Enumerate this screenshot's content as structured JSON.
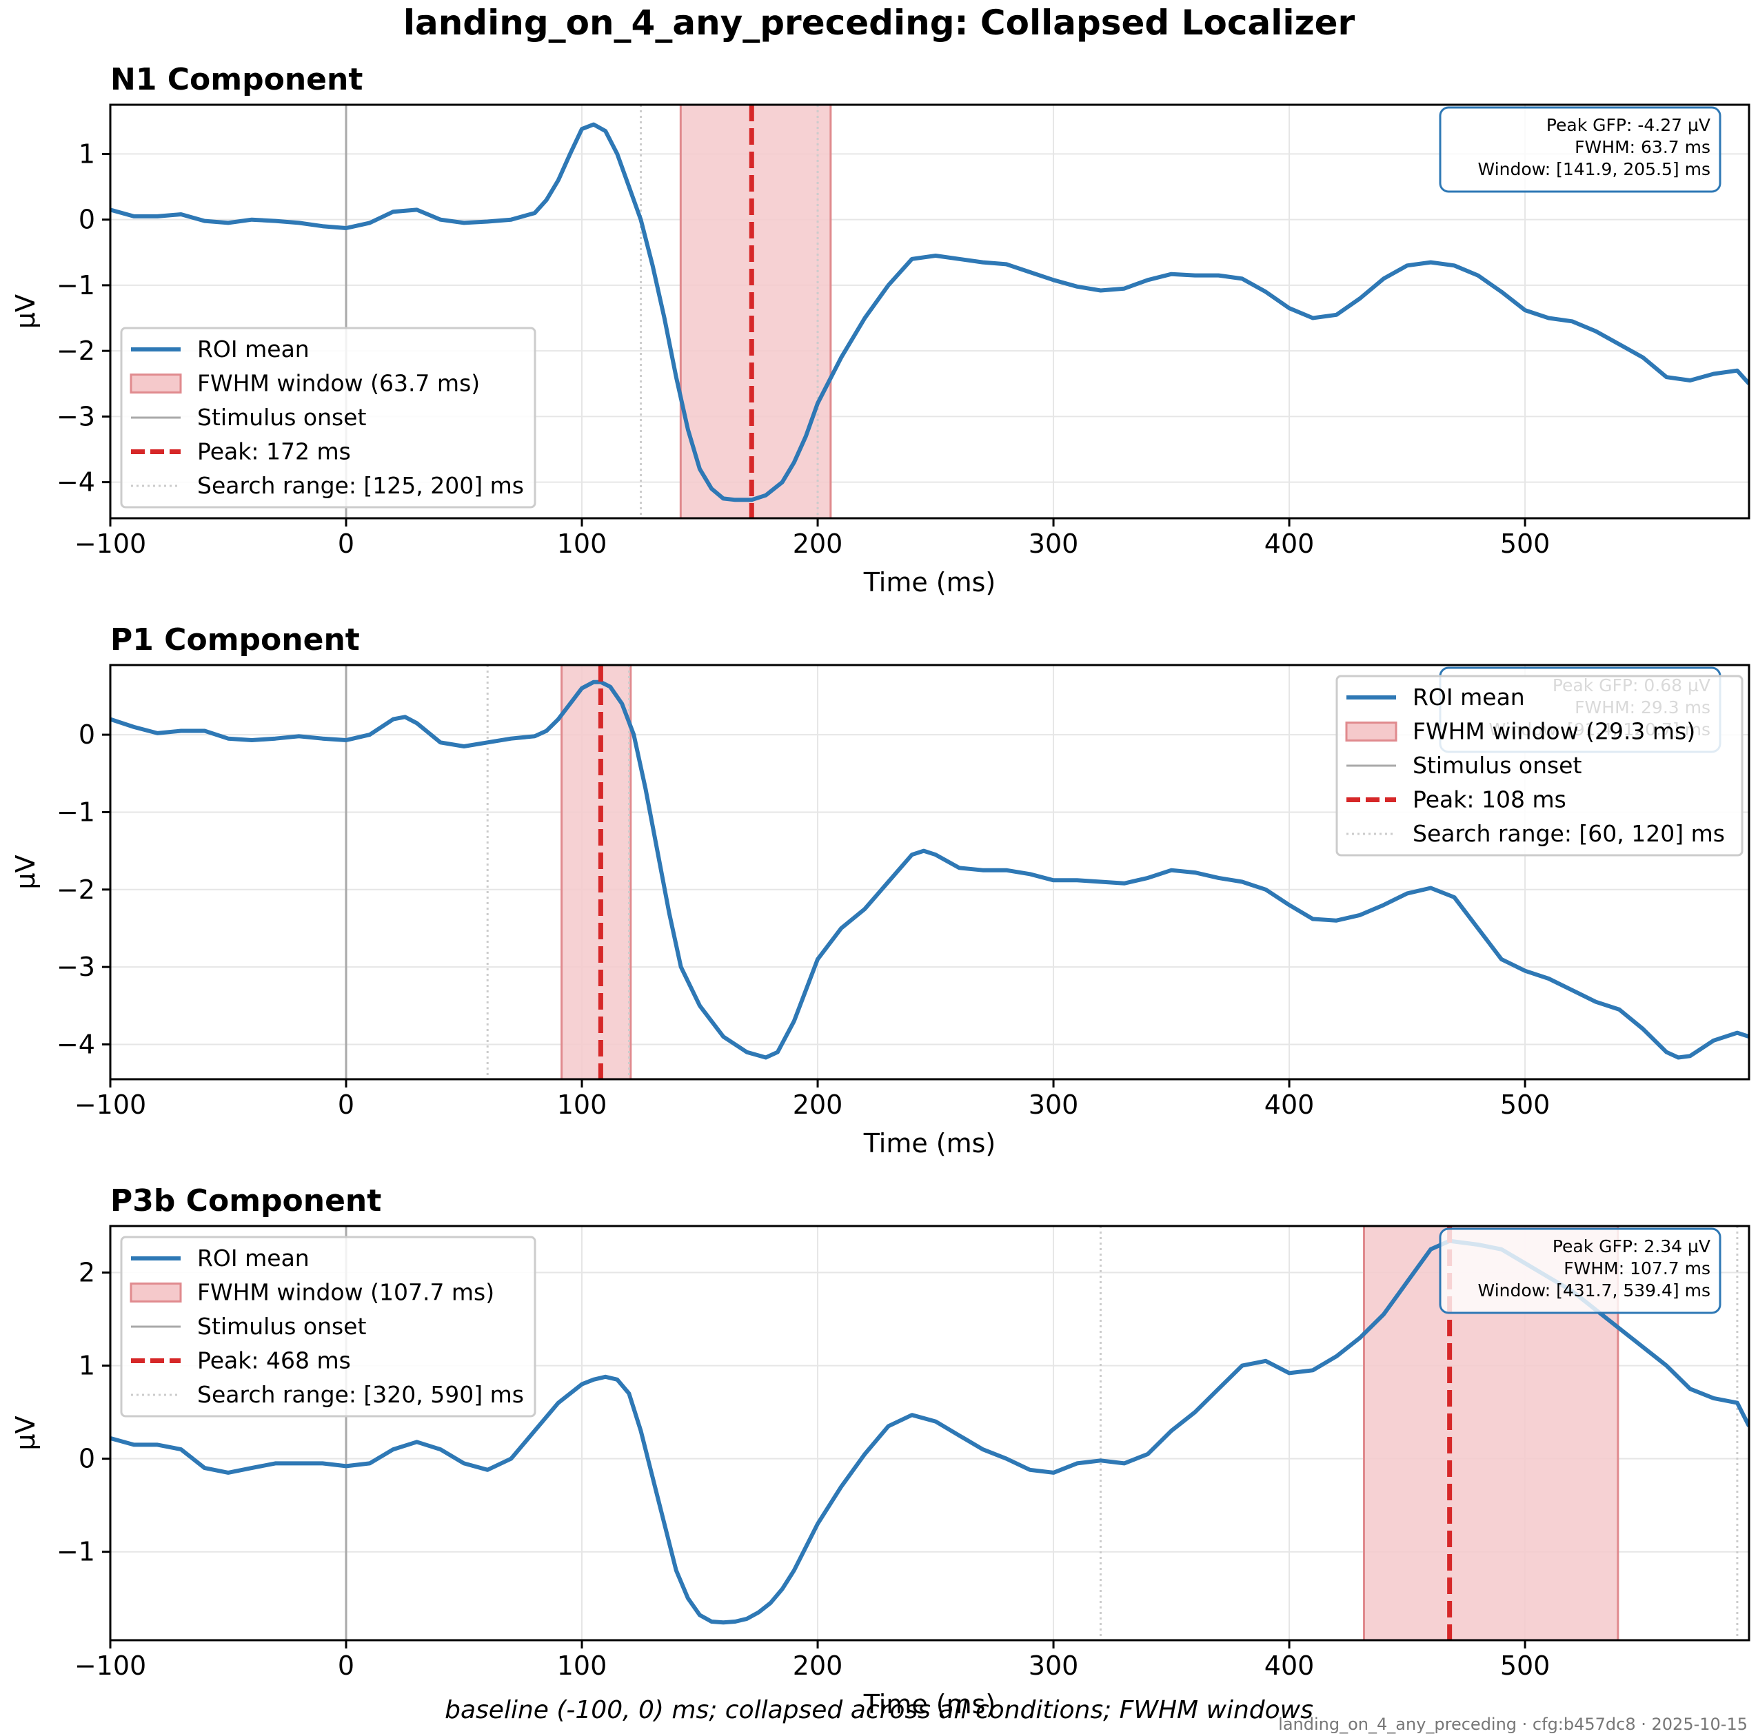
{
  "figure": {
    "title": "landing_on_4_any_preceding: Collapsed Localizer",
    "caption": "baseline (-100, 0) ms; collapsed across all conditions; FWHM windows",
    "footer": "landing_on_4_any_preceding · cfg:b457dc8 · 2025-10-15"
  },
  "colors": {
    "trace": "#2e78b5",
    "window_fill": "#f5c9cb",
    "window_edge": "#e08a8e",
    "peak": "#d62728",
    "onset": "#a9a9a9",
    "search": "#cccccc",
    "grid": "#e6e6e6"
  },
  "chart_data": [
    {
      "type": "line",
      "title": "N1 Component",
      "xlabel": "Time (ms)",
      "ylabel": "µV",
      "xlim": [
        -100,
        595
      ],
      "ylim": [
        -4.55,
        1.75
      ],
      "xticks": [
        -100,
        0,
        100,
        200,
        300,
        400,
        500
      ],
      "yticks": [
        -4,
        -3,
        -2,
        -1,
        0,
        1
      ],
      "grid": true,
      "legend_placement": "lower-left",
      "legend": [
        "ROI mean",
        "FWHM window (63.7 ms)",
        "Stimulus onset",
        "Peak: 172 ms",
        "Search range: [125, 200] ms"
      ],
      "annotation": [
        "Peak GFP: -4.27 µV",
        "FWHM: 63.7 ms",
        "Window: [141.9, 205.5] ms"
      ],
      "window": [
        141.9,
        205.5
      ],
      "peak": 172,
      "onset": 0,
      "search_range": [
        125,
        200
      ],
      "series": [
        {
          "name": "ROI mean",
          "x": [
            -100,
            -90,
            -80,
            -70,
            -60,
            -50,
            -40,
            -30,
            -20,
            -10,
            0,
            10,
            20,
            30,
            40,
            50,
            60,
            70,
            80,
            85,
            90,
            95,
            100,
            105,
            110,
            115,
            120,
            125,
            130,
            135,
            140,
            145,
            150,
            155,
            160,
            165,
            172,
            178,
            185,
            190,
            195,
            200,
            210,
            220,
            230,
            240,
            250,
            260,
            270,
            280,
            290,
            300,
            310,
            320,
            330,
            340,
            350,
            360,
            370,
            380,
            390,
            400,
            410,
            420,
            430,
            440,
            450,
            460,
            470,
            480,
            490,
            500,
            510,
            520,
            530,
            540,
            550,
            560,
            570,
            580,
            590,
            595
          ],
          "values": [
            0.15,
            0.05,
            0.05,
            0.08,
            -0.02,
            -0.05,
            0.0,
            -0.02,
            -0.05,
            -0.1,
            -0.13,
            -0.05,
            0.12,
            0.15,
            0.0,
            -0.05,
            -0.03,
            0.0,
            0.1,
            0.3,
            0.6,
            1.0,
            1.38,
            1.45,
            1.35,
            1.0,
            0.5,
            0.0,
            -0.7,
            -1.5,
            -2.4,
            -3.2,
            -3.8,
            -4.1,
            -4.25,
            -4.27,
            -4.27,
            -4.2,
            -4.0,
            -3.7,
            -3.3,
            -2.8,
            -2.1,
            -1.5,
            -1.0,
            -0.6,
            -0.55,
            -0.6,
            -0.65,
            -0.68,
            -0.8,
            -0.92,
            -1.02,
            -1.08,
            -1.05,
            -0.92,
            -0.83,
            -0.85,
            -0.85,
            -0.9,
            -1.1,
            -1.35,
            -1.5,
            -1.45,
            -1.2,
            -0.9,
            -0.7,
            -0.65,
            -0.7,
            -0.85,
            -1.1,
            -1.38,
            -1.5,
            -1.55,
            -1.7,
            -1.9,
            -2.1,
            -2.4,
            -2.45,
            -2.35,
            -2.3,
            -2.5
          ]
        }
      ]
    },
    {
      "type": "line",
      "title": "P1 Component",
      "xlabel": "Time (ms)",
      "ylabel": "µV",
      "xlim": [
        -100,
        595
      ],
      "ylim": [
        -4.45,
        0.9
      ],
      "xticks": [
        -100,
        0,
        100,
        200,
        300,
        400,
        500
      ],
      "yticks": [
        -4,
        -3,
        -2,
        -1,
        0
      ],
      "grid": true,
      "legend_placement": "top-right",
      "legend": [
        "ROI mean",
        "FWHM window (29.3 ms)",
        "Stimulus onset",
        "Peak: 108 ms",
        "Search range: [60, 120] ms"
      ],
      "annotation": [
        "Peak GFP: 0.68 µV",
        "FWHM: 29.3 ms",
        "Window: [91.4, 120.7] ms"
      ],
      "window": [
        91.4,
        120.7
      ],
      "peak": 108,
      "onset": 0,
      "search_range": [
        60,
        120
      ],
      "series": [
        {
          "name": "ROI mean",
          "x": [
            -100,
            -90,
            -80,
            -70,
            -60,
            -50,
            -40,
            -30,
            -20,
            -10,
            0,
            10,
            20,
            25,
            30,
            40,
            50,
            60,
            70,
            80,
            85,
            90,
            95,
            100,
            105,
            108,
            112,
            117,
            122,
            127,
            132,
            137,
            142,
            150,
            160,
            170,
            178,
            183,
            190,
            195,
            200,
            210,
            220,
            230,
            240,
            245,
            250,
            260,
            270,
            280,
            290,
            300,
            310,
            320,
            330,
            340,
            350,
            360,
            370,
            380,
            390,
            400,
            410,
            420,
            430,
            440,
            450,
            460,
            470,
            480,
            490,
            500,
            510,
            520,
            530,
            540,
            550,
            560,
            565,
            570,
            580,
            590,
            595
          ],
          "values": [
            0.2,
            0.1,
            0.02,
            0.05,
            0.05,
            -0.05,
            -0.07,
            -0.05,
            -0.02,
            -0.05,
            -0.07,
            0.0,
            0.2,
            0.23,
            0.15,
            -0.1,
            -0.15,
            -0.1,
            -0.05,
            -0.02,
            0.05,
            0.2,
            0.4,
            0.6,
            0.68,
            0.68,
            0.62,
            0.4,
            0.0,
            -0.7,
            -1.5,
            -2.3,
            -3.0,
            -3.5,
            -3.9,
            -4.1,
            -4.17,
            -4.1,
            -3.7,
            -3.3,
            -2.9,
            -2.5,
            -2.25,
            -1.9,
            -1.55,
            -1.5,
            -1.55,
            -1.72,
            -1.75,
            -1.75,
            -1.8,
            -1.88,
            -1.88,
            -1.9,
            -1.92,
            -1.85,
            -1.75,
            -1.78,
            -1.85,
            -1.9,
            -2.0,
            -2.2,
            -2.38,
            -2.4,
            -2.33,
            -2.2,
            -2.05,
            -1.98,
            -2.1,
            -2.5,
            -2.9,
            -3.05,
            -3.15,
            -3.3,
            -3.45,
            -3.55,
            -3.8,
            -4.1,
            -4.17,
            -4.15,
            -3.95,
            -3.85,
            -3.9
          ]
        }
      ]
    },
    {
      "type": "line",
      "title": "P3b Component",
      "xlabel": "Time (ms)",
      "ylabel": "µV",
      "xlim": [
        -100,
        595
      ],
      "ylim": [
        -1.95,
        2.5
      ],
      "xticks": [
        -100,
        0,
        100,
        200,
        300,
        400,
        500
      ],
      "yticks": [
        -1,
        0,
        1,
        2
      ],
      "grid": true,
      "legend_placement": "top-left",
      "legend": [
        "ROI mean",
        "FWHM window (107.7 ms)",
        "Stimulus onset",
        "Peak: 468 ms",
        "Search range: [320, 590] ms"
      ],
      "annotation": [
        "Peak GFP: 2.34 µV",
        "FWHM: 107.7 ms",
        "Window: [431.7, 539.4] ms"
      ],
      "window": [
        431.7,
        539.4
      ],
      "peak": 468,
      "onset": 0,
      "search_range": [
        320,
        590
      ],
      "series": [
        {
          "name": "ROI mean",
          "x": [
            -100,
            -90,
            -80,
            -70,
            -60,
            -50,
            -40,
            -30,
            -20,
            -10,
            0,
            10,
            20,
            30,
            40,
            50,
            60,
            70,
            80,
            90,
            100,
            105,
            110,
            115,
            120,
            125,
            130,
            135,
            140,
            145,
            150,
            155,
            160,
            165,
            170,
            175,
            180,
            185,
            190,
            200,
            210,
            220,
            230,
            240,
            250,
            260,
            270,
            280,
            290,
            300,
            310,
            320,
            330,
            340,
            350,
            360,
            370,
            380,
            390,
            400,
            410,
            420,
            430,
            440,
            450,
            460,
            468,
            480,
            490,
            500,
            510,
            520,
            530,
            540,
            550,
            560,
            570,
            580,
            590,
            595
          ],
          "values": [
            0.22,
            0.15,
            0.15,
            0.1,
            -0.1,
            -0.15,
            -0.1,
            -0.05,
            -0.05,
            -0.05,
            -0.08,
            -0.05,
            0.1,
            0.18,
            0.1,
            -0.05,
            -0.12,
            0.0,
            0.3,
            0.6,
            0.8,
            0.85,
            0.88,
            0.85,
            0.7,
            0.3,
            -0.2,
            -0.7,
            -1.2,
            -1.5,
            -1.68,
            -1.75,
            -1.76,
            -1.75,
            -1.72,
            -1.65,
            -1.55,
            -1.4,
            -1.2,
            -0.7,
            -0.3,
            0.05,
            0.35,
            0.47,
            0.4,
            0.25,
            0.1,
            0.0,
            -0.12,
            -0.15,
            -0.05,
            -0.02,
            -0.05,
            0.05,
            0.3,
            0.5,
            0.75,
            1.0,
            1.05,
            0.92,
            0.95,
            1.1,
            1.3,
            1.55,
            1.9,
            2.25,
            2.34,
            2.3,
            2.25,
            2.1,
            1.95,
            1.8,
            1.6,
            1.4,
            1.2,
            1.0,
            0.75,
            0.65,
            0.6,
            0.35
          ]
        }
      ]
    }
  ]
}
